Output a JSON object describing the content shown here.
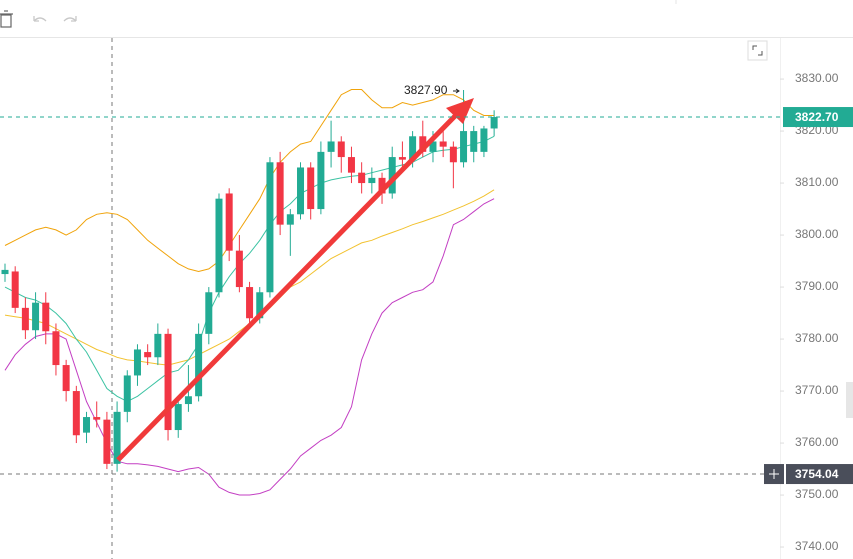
{
  "chart_data": {
    "type": "candlestick",
    "ylim": [
      3737.7,
      3837.9
    ],
    "yticks": [
      {
        "value": 3740,
        "label": "3740.00"
      },
      {
        "value": 3750,
        "label": "3750.00"
      },
      {
        "value": 3760,
        "label": "3760.00"
      },
      {
        "value": 3770,
        "label": "3770.00"
      },
      {
        "value": 3780,
        "label": "3780.00"
      },
      {
        "value": 3790,
        "label": "3790.00"
      },
      {
        "value": 3800,
        "label": "3800.00"
      },
      {
        "value": 3810,
        "label": "3810.00"
      },
      {
        "value": 3820,
        "label": "3820.00"
      },
      {
        "value": 3830,
        "label": "3830.00"
      }
    ],
    "up_color": "#22ab94",
    "down_color": "#f23645",
    "open": [
      3792.5,
      3793,
      3786,
      3781.7,
      3787,
      3781.5,
      3775,
      3770,
      3762,
      3765,
      3764.5,
      3756,
      3766,
      3773,
      3777.5,
      3776.5,
      3781,
      3762.5,
      3767.5,
      3769,
      3781,
      3789,
      3808,
      3797,
      3790,
      3784,
      3789,
      3814,
      3802,
      3804,
      3813,
      3805,
      3816,
      3818,
      3815,
      3812,
      3810,
      3811,
      3808,
      3815,
      3814.5,
      3819,
      3816,
      3818,
      3817,
      3814,
      3816,
      3816,
      3820.5
    ],
    "high": [
      3794.5,
      3794,
      3788,
      3789,
      3789,
      3783,
      3776,
      3771,
      3766,
      3768,
      3766,
      3768,
      3774,
      3779,
      3779,
      3783,
      3782,
      3768,
      3775,
      3783,
      3790,
      3808,
      3809,
      3800,
      3791,
      3790,
      3815,
      3816,
      3805,
      3814,
      3814,
      3818,
      3822,
      3819,
      3817,
      3814,
      3813,
      3812,
      3817,
      3818,
      3820,
      3822,
      3820,
      3821,
      3818,
      3827.9,
      3821,
      3821,
      3824
    ],
    "low": [
      3791,
      3785,
      3780,
      3780,
      3779,
      3773,
      3768,
      3760,
      3760,
      3763,
      3755,
      3754.5,
      3764,
      3771,
      3775,
      3775,
      3760.5,
      3761,
      3766,
      3768,
      3779,
      3788,
      3795,
      3789,
      3783,
      3783,
      3788,
      3800,
      3796,
      3803,
      3803,
      3804,
      3813,
      3812,
      3810,
      3808,
      3808,
      3806,
      3807,
      3813,
      3813,
      3815,
      3814,
      3815,
      3809,
      3813,
      3814,
      3815,
      3819
    ],
    "close": [
      3793.3,
      3786,
      3781.7,
      3787,
      3781.5,
      3775,
      3770,
      3761.5,
      3765,
      3764.5,
      3756,
      3766,
      3773,
      3778,
      3776.5,
      3781,
      3762.5,
      3767.5,
      3769,
      3781,
      3789,
      3807,
      3797,
      3790,
      3784,
      3789,
      3814,
      3802,
      3804,
      3813,
      3805,
      3816,
      3818,
      3815,
      3812,
      3810,
      3811,
      3808,
      3815,
      3814.5,
      3819,
      3816,
      3818,
      3817,
      3814,
      3820,
      3820,
      3820.5,
      3822.7
    ],
    "indicators": [
      {
        "color": "#f0a30a",
        "values": [
          3798,
          3799,
          3800,
          3801,
          3801.5,
          3801,
          3800,
          3801,
          3803,
          3804,
          3804.3,
          3804,
          3803,
          3801,
          3799,
          3797.5,
          3796,
          3794.5,
          3793.5,
          3793,
          3793.5,
          3795,
          3798,
          3801,
          3804,
          3807,
          3811,
          3814,
          3816,
          3817.5,
          3818,
          3821,
          3824,
          3827,
          3828,
          3828,
          3826,
          3824.5,
          3824.5,
          3825.5,
          3825,
          3825.5,
          3826,
          3827,
          3827,
          3826,
          3824,
          3823,
          3823
        ]
      },
      {
        "color": "#c33fc3",
        "values": [
          3774,
          3777,
          3779,
          3780.5,
          3781,
          3781,
          3780,
          3774,
          3768,
          3764,
          3760,
          3756.5,
          3756,
          3756,
          3755.8,
          3755.5,
          3755,
          3754.5,
          3755,
          3755.3,
          3754,
          3751.5,
          3750.5,
          3750,
          3750,
          3750.3,
          3751,
          3753,
          3755,
          3757.5,
          3759,
          3760.5,
          3761.5,
          3763,
          3767,
          3776,
          3781,
          3785,
          3787,
          3788,
          3789,
          3789.5,
          3791,
          3796,
          3802,
          3803,
          3804.5,
          3806,
          3807
        ]
      },
      {
        "color": "#f2c230",
        "values": [
          3784.6,
          3784.3,
          3784,
          3783.5,
          3783,
          3782,
          3781,
          3780,
          3779,
          3778,
          3777.3,
          3776.5,
          3776,
          3775.8,
          3775.5,
          3775.2,
          3775,
          3775.5,
          3776,
          3777,
          3778,
          3779,
          3780,
          3781.5,
          3783,
          3784.6,
          3786,
          3788,
          3790,
          3791,
          3792.5,
          3794,
          3795.5,
          3796.5,
          3797.5,
          3798.5,
          3799,
          3799.8,
          3800.5,
          3801.2,
          3802,
          3802.6,
          3803.3,
          3804,
          3804.8,
          3805.6,
          3806.5,
          3807.5,
          3808.7
        ]
      },
      {
        "color": "#3cc3a3",
        "values": [
          3790,
          3789,
          3788,
          3787.5,
          3786.5,
          3785,
          3783,
          3780,
          3777.5,
          3774,
          3770.5,
          3769,
          3768,
          3769,
          3770.5,
          3772,
          3773.5,
          3774,
          3776,
          3779,
          3785,
          3789,
          3792,
          3794.5,
          3796.5,
          3799,
          3802,
          3804.5,
          3806,
          3808,
          3809,
          3810,
          3810.6,
          3811,
          3811.3,
          3811.5,
          3812,
          3812.5,
          3813,
          3813.5,
          3814,
          3815,
          3816,
          3816.3,
          3816.5,
          3817,
          3817.5,
          3818,
          3819
        ]
      }
    ],
    "high_label": {
      "value": 3827.9,
      "label": "3827.90"
    },
    "last_price": {
      "value": 3822.7,
      "label": "3822.70"
    },
    "crosshair_price": {
      "value": 3754.04,
      "label": "3754.04"
    }
  }
}
